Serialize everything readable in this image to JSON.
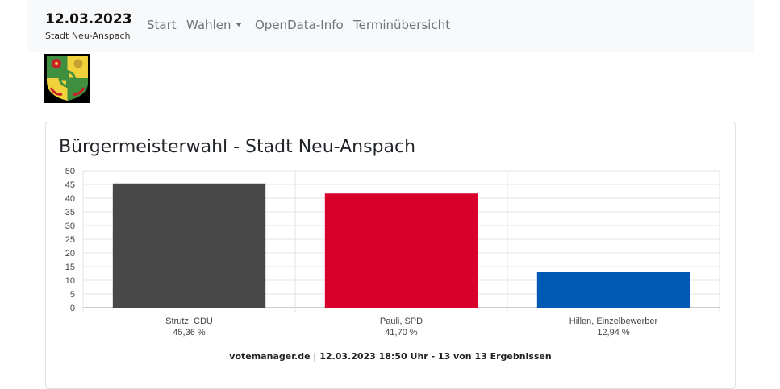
{
  "brand": {
    "date": "12.03.2023",
    "subtitle": "Stadt Neu-Anspach"
  },
  "nav": {
    "items": [
      {
        "label": "Start"
      },
      {
        "label": "Wahlen",
        "dropdown": true
      },
      {
        "label": "OpenData-Info"
      },
      {
        "label": "Terminübersicht"
      }
    ]
  },
  "card": {
    "title": "Bürgermeisterwahl - Stadt Neu-Anspach",
    "footer": "votemanager.de | 12.03.2023 18:50 Uhr - 13 von 13 Ergebnissen"
  },
  "chart_data": {
    "type": "bar",
    "categories": [
      "Strutz, CDU",
      "Pauli, SPD",
      "Hillen, Einzelbewerber"
    ],
    "values": [
      45.36,
      41.7,
      12.94
    ],
    "value_labels": [
      "45,36 %",
      "41,70 %",
      "12,94 %"
    ],
    "colors": [
      "#484848",
      "#d8002a",
      "#0059b3"
    ],
    "ylim": [
      0,
      50
    ],
    "yticks": [
      "0",
      "5",
      "10",
      "15",
      "20",
      "25",
      "30",
      "35",
      "40",
      "45",
      "50"
    ],
    "grid": true,
    "legend": "none"
  }
}
